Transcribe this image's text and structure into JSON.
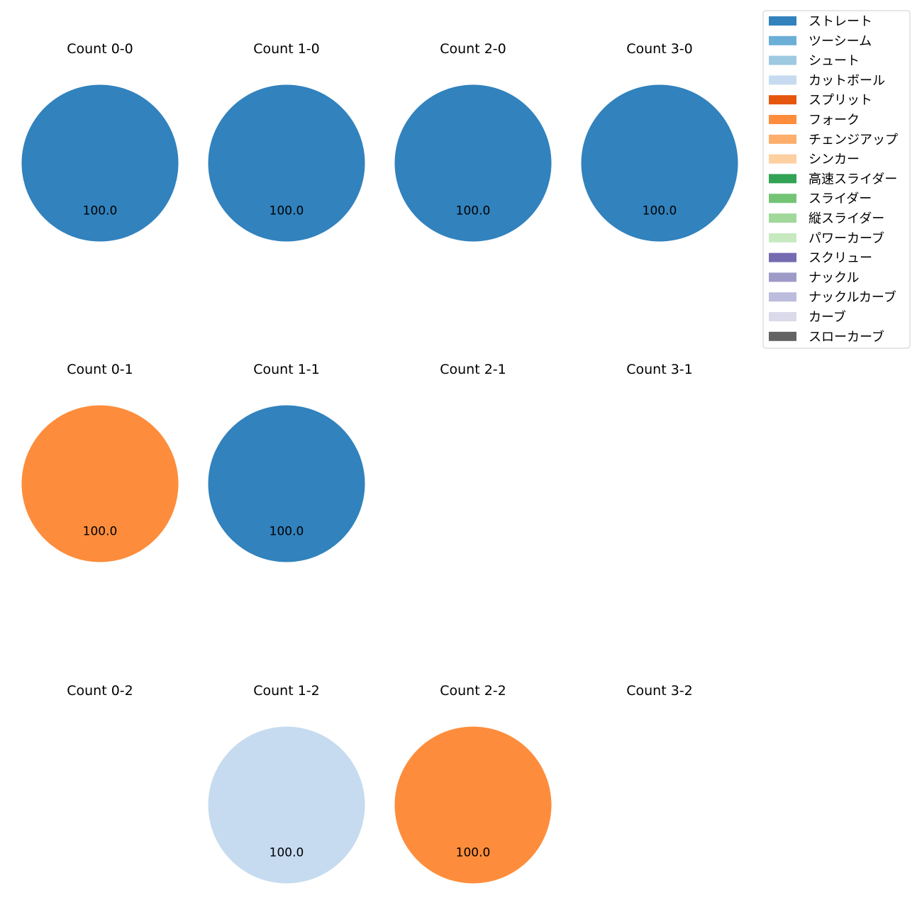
{
  "chart_data": {
    "type": "pie",
    "legend_position": "top-right",
    "legend": [
      {
        "label": "ストレート",
        "color": "#3182bd"
      },
      {
        "label": "ツーシーム",
        "color": "#6baed6"
      },
      {
        "label": "シュート",
        "color": "#9ecae1"
      },
      {
        "label": "カットボール",
        "color": "#c6dbef"
      },
      {
        "label": "スプリット",
        "color": "#e6550d"
      },
      {
        "label": "フォーク",
        "color": "#fd8d3c"
      },
      {
        "label": "チェンジアップ",
        "color": "#fdae6b"
      },
      {
        "label": "シンカー",
        "color": "#fdd0a2"
      },
      {
        "label": "高速スライダー",
        "color": "#31a354"
      },
      {
        "label": "スライダー",
        "color": "#74c476"
      },
      {
        "label": "縦スライダー",
        "color": "#a1d99b"
      },
      {
        "label": "パワーカーブ",
        "color": "#c7e9c0"
      },
      {
        "label": "スクリュー",
        "color": "#756bb1"
      },
      {
        "label": "ナックル",
        "color": "#9e9ac8"
      },
      {
        "label": "ナックルカーブ",
        "color": "#bcbddc"
      },
      {
        "label": "カーブ",
        "color": "#dadaeb"
      },
      {
        "label": "スローカーブ",
        "color": "#636363"
      }
    ],
    "panels": [
      {
        "title": "Count 0-0",
        "slices": [
          {
            "pitch": "ストレート",
            "value": 100.0,
            "label": "100.0"
          }
        ]
      },
      {
        "title": "Count 1-0",
        "slices": [
          {
            "pitch": "ストレート",
            "value": 100.0,
            "label": "100.0"
          }
        ]
      },
      {
        "title": "Count 2-0",
        "slices": [
          {
            "pitch": "ストレート",
            "value": 100.0,
            "label": "100.0"
          }
        ]
      },
      {
        "title": "Count 3-0",
        "slices": [
          {
            "pitch": "ストレート",
            "value": 100.0,
            "label": "100.0"
          }
        ]
      },
      {
        "title": "Count 0-1",
        "slices": [
          {
            "pitch": "フォーク",
            "value": 100.0,
            "label": "100.0"
          }
        ]
      },
      {
        "title": "Count 1-1",
        "slices": [
          {
            "pitch": "ストレート",
            "value": 100.0,
            "label": "100.0"
          }
        ]
      },
      {
        "title": "Count 2-1",
        "slices": []
      },
      {
        "title": "Count 3-1",
        "slices": []
      },
      {
        "title": "Count 0-2",
        "slices": []
      },
      {
        "title": "Count 1-2",
        "slices": [
          {
            "pitch": "カットボール",
            "value": 100.0,
            "label": "100.0"
          }
        ]
      },
      {
        "title": "Count 2-2",
        "slices": [
          {
            "pitch": "フォーク",
            "value": 100.0,
            "label": "100.0"
          }
        ]
      },
      {
        "title": "Count 3-2",
        "slices": []
      }
    ]
  }
}
